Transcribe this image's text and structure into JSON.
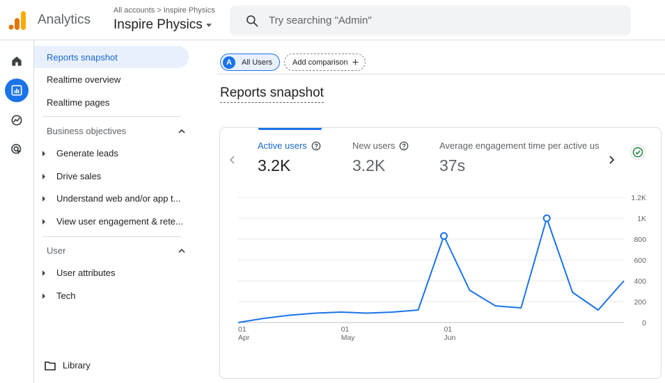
{
  "header": {
    "app_name": "Analytics",
    "breadcrumb_root": "All accounts",
    "breadcrumb_sep": ">",
    "breadcrumb_account": "Inspire Physics",
    "property_name": "Inspire Physics",
    "search_placeholder": "Try searching \"Admin\""
  },
  "rail": {
    "items": [
      "home-icon",
      "reports-icon",
      "explore-icon",
      "advertising-icon"
    ],
    "active": "reports-icon"
  },
  "sidebar": {
    "top_items": [
      {
        "label": "Reports snapshot",
        "active": true
      },
      {
        "label": "Realtime overview",
        "active": false
      },
      {
        "label": "Realtime pages",
        "active": false
      }
    ],
    "sections": [
      {
        "title": "Business objectives",
        "items": [
          {
            "label": "Generate leads"
          },
          {
            "label": "Drive sales"
          },
          {
            "label": "Understand web and/or app t..."
          },
          {
            "label": "View user engagement & rete..."
          }
        ]
      },
      {
        "title": "User",
        "items": [
          {
            "label": "User attributes"
          },
          {
            "label": "Tech"
          }
        ]
      }
    ],
    "library_label": "Library"
  },
  "main": {
    "chip_users_letter": "A",
    "chip_users_label": "All Users",
    "add_comparison_label": "Add comparison",
    "page_title": "Reports snapshot",
    "metrics": [
      {
        "label": "Active users",
        "value": "3.2K",
        "active": true
      },
      {
        "label": "New users",
        "value": "3.2K",
        "active": false
      },
      {
        "label": "Average engagement time per active us",
        "value": "37s",
        "active": false
      }
    ]
  },
  "colors": {
    "accent": "#1a73e8",
    "line": "#1a73e8",
    "check": "#188038"
  },
  "chart_data": {
    "type": "line",
    "series": [
      {
        "values": [
          0,
          40,
          70,
          90,
          100,
          90,
          100,
          120,
          830,
          310,
          160,
          140,
          1000,
          290,
          120,
          400
        ]
      }
    ],
    "x_tick_labels": [
      {
        "day": "01",
        "month": "Apr",
        "index": 0
      },
      {
        "day": "01",
        "month": "May",
        "index": 4
      },
      {
        "day": "01",
        "month": "Jun",
        "index": 8
      }
    ],
    "y_ticks": [
      "0",
      "200",
      "400",
      "600",
      "800",
      "1K",
      "1.2K"
    ],
    "ylim": [
      0,
      1200
    ],
    "highlighted_points": [
      8,
      12
    ],
    "grid": true
  }
}
